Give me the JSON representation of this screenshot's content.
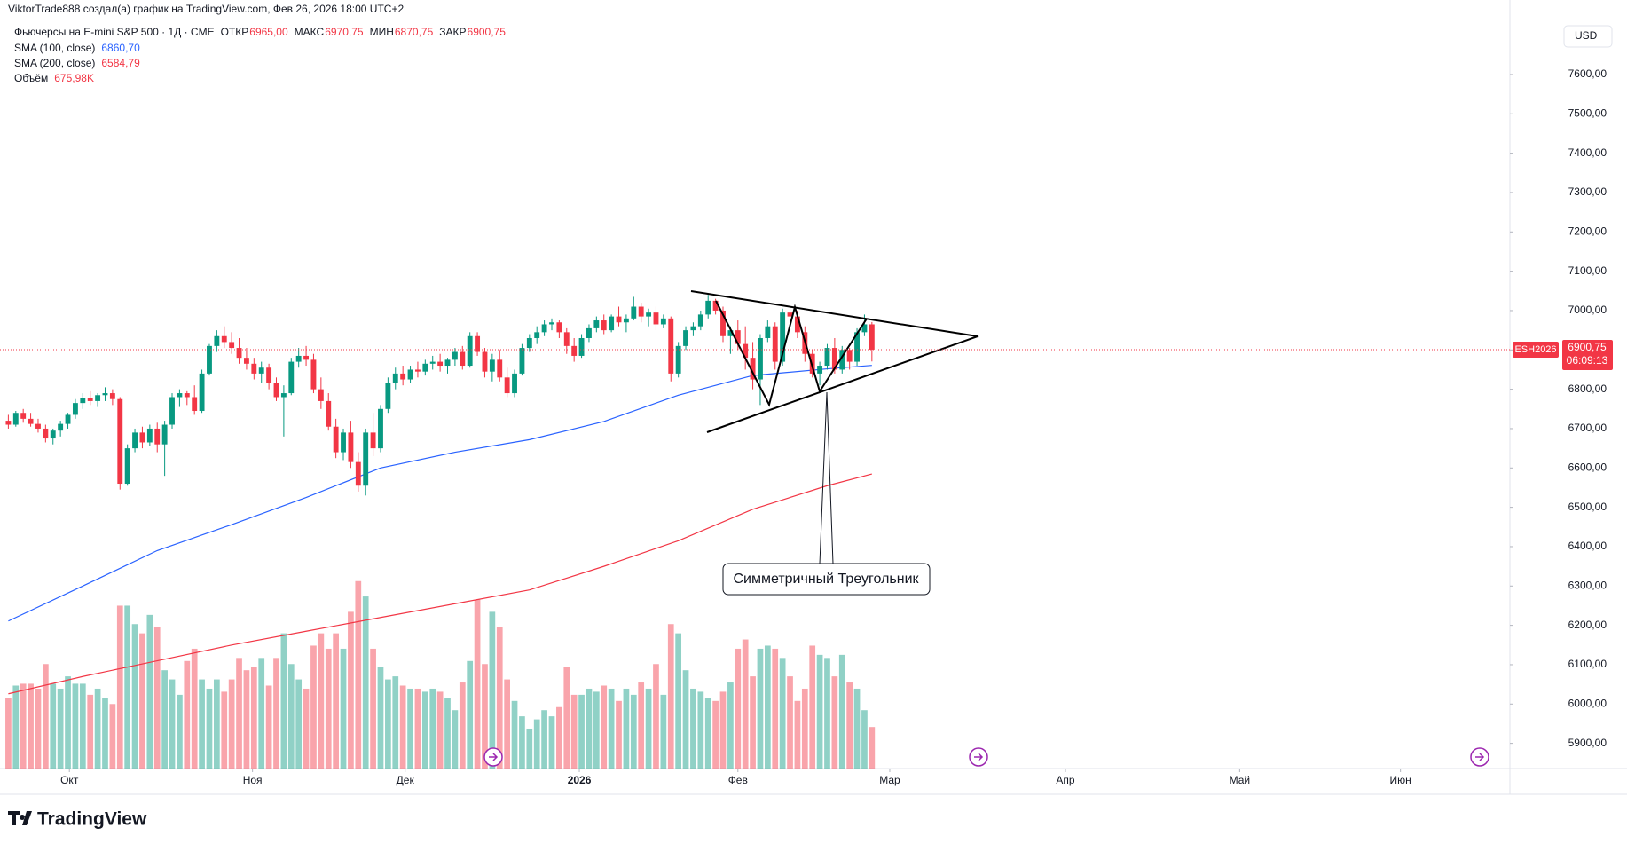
{
  "header": "ViktorTrade888 создал(а) график на TradingView.com, Фев 26, 2026 18:00 UTC+2",
  "logo": "TradingView",
  "chart_data": {
    "type": "candlestick",
    "symbol": "Фьючерсы на E-mini S&P 500 · 1Д · CME",
    "currency": "USD",
    "up_color": "#089981",
    "down_color": "#f23645",
    "ohlc_legend": [
      {
        "name": "ОТКР",
        "value": 6965,
        "label": "6965,00"
      },
      {
        "name": "МАКС",
        "value": 6970.75,
        "label": "6970,75"
      },
      {
        "name": "МИН",
        "value": 6870.75,
        "label": "6870,75"
      },
      {
        "name": "ЗАКР",
        "value": 6900.75,
        "label": "6900,75"
      }
    ],
    "candles": [
      [
        6720,
        6735,
        6700,
        6710
      ],
      [
        6710,
        6745,
        6705,
        6740
      ],
      [
        6740,
        6750,
        6715,
        6725
      ],
      [
        6725,
        6740,
        6705,
        6712
      ],
      [
        6712,
        6725,
        6690,
        6700
      ],
      [
        6700,
        6710,
        6665,
        6675
      ],
      [
        6675,
        6700,
        6660,
        6695
      ],
      [
        6695,
        6720,
        6680,
        6712
      ],
      [
        6712,
        6740,
        6700,
        6735
      ],
      [
        6735,
        6775,
        6725,
        6765
      ],
      [
        6765,
        6790,
        6750,
        6778
      ],
      [
        6778,
        6795,
        6760,
        6770
      ],
      [
        6770,
        6790,
        6755,
        6785
      ],
      [
        6785,
        6805,
        6770,
        6790
      ],
      [
        6790,
        6800,
        6760,
        6775
      ],
      [
        6775,
        6780,
        6545,
        6560
      ],
      [
        6560,
        6660,
        6555,
        6650
      ],
      [
        6650,
        6700,
        6640,
        6690
      ],
      [
        6690,
        6705,
        6650,
        6665
      ],
      [
        6665,
        6710,
        6655,
        6700
      ],
      [
        6700,
        6715,
        6640,
        6660
      ],
      [
        6660,
        6720,
        6580,
        6710
      ],
      [
        6710,
        6790,
        6700,
        6780
      ],
      [
        6780,
        6800,
        6755,
        6790
      ],
      [
        6790,
        6795,
        6760,
        6780
      ],
      [
        6780,
        6810,
        6735,
        6745
      ],
      [
        6745,
        6850,
        6740,
        6840
      ],
      [
        6840,
        6915,
        6835,
        6910
      ],
      [
        6910,
        6950,
        6895,
        6935
      ],
      [
        6935,
        6960,
        6905,
        6920
      ],
      [
        6920,
        6945,
        6890,
        6905
      ],
      [
        6905,
        6930,
        6865,
        6880
      ],
      [
        6880,
        6905,
        6850,
        6865
      ],
      [
        6865,
        6880,
        6825,
        6840
      ],
      [
        6840,
        6870,
        6815,
        6855
      ],
      [
        6855,
        6865,
        6800,
        6815
      ],
      [
        6815,
        6830,
        6770,
        6780
      ],
      [
        6780,
        6810,
        6680,
        6790
      ],
      [
        6790,
        6880,
        6785,
        6870
      ],
      [
        6870,
        6905,
        6855,
        6885
      ],
      [
        6885,
        6910,
        6860,
        6875
      ],
      [
        6875,
        6890,
        6790,
        6800
      ],
      [
        6800,
        6830,
        6750,
        6770
      ],
      [
        6770,
        6790,
        6695,
        6705
      ],
      [
        6705,
        6725,
        6625,
        6640
      ],
      [
        6640,
        6700,
        6620,
        6690
      ],
      [
        6690,
        6720,
        6600,
        6615
      ],
      [
        6615,
        6640,
        6540,
        6555
      ],
      [
        6555,
        6700,
        6530,
        6690
      ],
      [
        6690,
        6740,
        6630,
        6650
      ],
      [
        6650,
        6760,
        6640,
        6750
      ],
      [
        6750,
        6830,
        6740,
        6815
      ],
      [
        6815,
        6855,
        6800,
        6840
      ],
      [
        6840,
        6860,
        6810,
        6825
      ],
      [
        6825,
        6860,
        6815,
        6850
      ],
      [
        6850,
        6870,
        6830,
        6845
      ],
      [
        6845,
        6875,
        6835,
        6865
      ],
      [
        6865,
        6885,
        6850,
        6870
      ],
      [
        6870,
        6890,
        6845,
        6860
      ],
      [
        6860,
        6880,
        6840,
        6875
      ],
      [
        6875,
        6905,
        6860,
        6895
      ],
      [
        6895,
        6910,
        6850,
        6860
      ],
      [
        6860,
        6945,
        6855,
        6935
      ],
      [
        6935,
        6945,
        6885,
        6895
      ],
      [
        6895,
        6905,
        6830,
        6845
      ],
      [
        6845,
        6890,
        6820,
        6875
      ],
      [
        6875,
        6900,
        6820,
        6830
      ],
      [
        6830,
        6855,
        6780,
        6790
      ],
      [
        6790,
        6850,
        6780,
        6840
      ],
      [
        6840,
        6915,
        6835,
        6905
      ],
      [
        6905,
        6940,
        6895,
        6930
      ],
      [
        6930,
        6960,
        6915,
        6945
      ],
      [
        6945,
        6975,
        6935,
        6965
      ],
      [
        6965,
        6980,
        6950,
        6970
      ],
      [
        6970,
        6975,
        6930,
        6945
      ],
      [
        6945,
        6955,
        6890,
        6910
      ],
      [
        6910,
        6930,
        6870,
        6885
      ],
      [
        6885,
        6940,
        6880,
        6930
      ],
      [
        6930,
        6965,
        6920,
        6955
      ],
      [
        6955,
        6985,
        6945,
        6975
      ],
      [
        6975,
        6990,
        6940,
        6950
      ],
      [
        6950,
        6990,
        6945,
        6985
      ],
      [
        6985,
        7010,
        6960,
        6970
      ],
      [
        6970,
        6990,
        6945,
        6980
      ],
      [
        6980,
        7035,
        6975,
        7010
      ],
      [
        7010,
        7020,
        6970,
        6985
      ],
      [
        6985,
        7005,
        6960,
        6995
      ],
      [
        6995,
        7010,
        6950,
        6965
      ],
      [
        6965,
        6990,
        6955,
        6980
      ],
      [
        6980,
        6985,
        6820,
        6840
      ],
      [
        6840,
        6920,
        6830,
        6910
      ],
      [
        6910,
        6960,
        6900,
        6950
      ],
      [
        6950,
        6970,
        6935,
        6960
      ],
      [
        6960,
        7000,
        6950,
        6990
      ],
      [
        6990,
        7040,
        6980,
        7025
      ],
      [
        7025,
        7030,
        6990,
        7000
      ],
      [
        7000,
        7010,
        6920,
        6935
      ],
      [
        6935,
        6960,
        6890,
        6950
      ],
      [
        6950,
        6975,
        6900,
        6915
      ],
      [
        6915,
        6960,
        6850,
        6880
      ],
      [
        6880,
        6920,
        6800,
        6825
      ],
      [
        6825,
        6940,
        6760,
        6930
      ],
      [
        6930,
        6975,
        6920,
        6960
      ],
      [
        6960,
        6970,
        6850,
        6870
      ],
      [
        6870,
        7005,
        6860,
        6995
      ],
      [
        6995,
        7010,
        6975,
        6985
      ],
      [
        6985,
        7000,
        6930,
        6945
      ],
      [
        6945,
        6960,
        6870,
        6890
      ],
      [
        6890,
        6900,
        6830,
        6840
      ],
      [
        6840,
        6870,
        6810,
        6860
      ],
      [
        6860,
        6915,
        6850,
        6905
      ],
      [
        6905,
        6930,
        6840,
        6850
      ],
      [
        6850,
        6910,
        6840,
        6900
      ],
      [
        6900,
        6905,
        6850,
        6870
      ],
      [
        6870,
        6955,
        6860,
        6945
      ],
      [
        6945,
        6990,
        6935,
        6965
      ],
      [
        6965,
        6970.75,
        6870.75,
        6900.75
      ]
    ],
    "volume": {
      "name": "Объём",
      "legend_value": {
        "value": 675.98,
        "label": "675,98K"
      },
      "values": [
        1150,
        1350,
        1380,
        1380,
        1300,
        1700,
        1380,
        1300,
        1500,
        1380,
        1380,
        1200,
        1300,
        1150,
        1050,
        2650,
        2650,
        2350,
        2200,
        2500,
        2300,
        1600,
        1450,
        1200,
        1750,
        1950,
        1450,
        1300,
        1450,
        1250,
        1450,
        1800,
        1600,
        1650,
        1800,
        1350,
        1800,
        2200,
        1700,
        1450,
        1300,
        2000,
        2200,
        1950,
        2200,
        1950,
        2550,
        3050,
        2800,
        1950,
        1650,
        1450,
        1500,
        1350,
        1300,
        1300,
        1250,
        1300,
        1250,
        1150,
        950,
        1400,
        1750,
        2750,
        1700,
        2550,
        2300,
        1450,
        1100,
        850,
        650,
        800,
        950,
        850,
        1000,
        1650,
        1200,
        1200,
        1300,
        1250,
        1350,
        1300,
        1100,
        1300,
        1200,
        1400,
        1300,
        1700,
        1200,
        2350,
        2200,
        1600,
        1300,
        1250,
        1150,
        1100,
        1250,
        1400,
        1950,
        2100,
        1500,
        1950,
        2000,
        1950,
        1800,
        1500,
        1100,
        1300,
        2000,
        1850,
        1800,
        1500,
        1850,
        1400,
        1300,
        950,
        675.98
      ]
    },
    "sma": [
      {
        "name": "SMA (100, close)",
        "color": "#2962ff",
        "legend_value": {
          "value": 6860.7,
          "label": "6860,70"
        },
        "x": [
          0,
          10,
          20,
          30,
          40,
          50,
          60,
          70,
          80,
          90,
          100,
          110,
          116
        ],
        "values": [
          6211,
          6300,
          6390,
          6456,
          6525,
          6600,
          6640,
          6672,
          6718,
          6785,
          6835,
          6852,
          6860.7
        ]
      },
      {
        "name": "SMA (200, close)",
        "color": "#f23645",
        "legend_value": {
          "value": 6584.79,
          "label": "6584,79"
        },
        "x": [
          0,
          10,
          20,
          30,
          40,
          50,
          60,
          70,
          80,
          90,
          100,
          110,
          116
        ],
        "values": [
          6026,
          6070,
          6110,
          6150,
          6185,
          6220,
          6255,
          6290,
          6350,
          6415,
          6495,
          6555,
          6584.79
        ]
      }
    ],
    "xlim": [
      -1.12,
      201.7
    ],
    "xticks": [
      {
        "value": 8.2,
        "label": "Окт"
      },
      {
        "value": 32.8,
        "label": "Ноя"
      },
      {
        "value": 53.3,
        "label": "Дек"
      },
      {
        "value": 76.7,
        "label": "2026"
      },
      {
        "value": 98,
        "label": "Фев"
      },
      {
        "value": 118.4,
        "label": "Мар"
      },
      {
        "value": 142,
        "label": "Апр"
      },
      {
        "value": 165.4,
        "label": "Май"
      },
      {
        "value": 187,
        "label": "Июн"
      }
    ],
    "ylim": [
      5836,
      7742
    ],
    "yticks": [
      {
        "value": 5900,
        "label": "5900,00"
      },
      {
        "value": 6000,
        "label": "6000,00"
      },
      {
        "value": 6100,
        "label": "6100,00"
      },
      {
        "value": 6200,
        "label": "6200,00"
      },
      {
        "value": 6300,
        "label": "6300,00"
      },
      {
        "value": 6400,
        "label": "6400,00"
      },
      {
        "value": 6500,
        "label": "6500,00"
      },
      {
        "value": 6600,
        "label": "6600,00"
      },
      {
        "value": 6700,
        "label": "6700,00"
      },
      {
        "value": 6800,
        "label": "6800,00"
      },
      {
        "value": 6900,
        "label": "6900,00"
      },
      {
        "value": 7000,
        "label": "7000,00"
      },
      {
        "value": 7100,
        "label": "7100,00"
      },
      {
        "value": 7200,
        "label": "7200,00"
      },
      {
        "value": 7300,
        "label": "7300,00"
      },
      {
        "value": 7400,
        "label": "7400,00"
      },
      {
        "value": 7500,
        "label": "7500,00"
      },
      {
        "value": 7600,
        "label": "7600,00"
      }
    ],
    "price_tag": {
      "symbol": "ESH2026",
      "value": 6900.75,
      "label": "6900,75",
      "countdown": "06:09:13"
    },
    "annotation": "Симметричный Треугольник"
  }
}
